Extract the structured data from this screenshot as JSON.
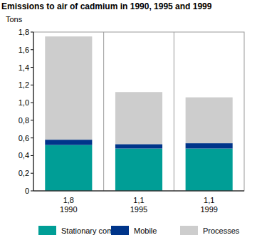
{
  "chart_data": {
    "type": "bar",
    "title": "Emissions to air of cadmium in 1990, 1995 and 1999",
    "y_label": "Tons",
    "categories": [
      "1990",
      "1995",
      "1999"
    ],
    "totals": [
      1.8,
      1.1,
      1.1
    ],
    "total_labels": [
      "1,8",
      "1,1",
      "1,1"
    ],
    "series": [
      {
        "name": "Stationary comb.",
        "color": "#009e96",
        "values": [
          0.52,
          0.48,
          0.48
        ]
      },
      {
        "name": "Mobile",
        "color": "#00358a",
        "values": [
          0.06,
          0.05,
          0.06
        ]
      },
      {
        "name": "Processes",
        "color": "#cdcdcd",
        "values": [
          1.17,
          0.59,
          0.52
        ]
      }
    ],
    "stacked": true,
    "grid": false,
    "legend": "bottom",
    "ylim": [
      0,
      1.8
    ],
    "yticks": [
      0,
      {
        "value": 0.2,
        "label": "0,2"
      },
      {
        "value": 0.4,
        "label": "0,4"
      },
      {
        "value": 0.6,
        "label": "0,6"
      },
      {
        "value": 0.8,
        "label": "0,8"
      },
      {
        "value": 1.0,
        "label": "1,0"
      },
      {
        "value": 1.2,
        "label": "1,2"
      },
      {
        "value": 1.4,
        "label": "1,4"
      },
      {
        "value": 1.6,
        "label": "1,6"
      },
      {
        "value": 1.8,
        "label": "1,8"
      }
    ]
  }
}
